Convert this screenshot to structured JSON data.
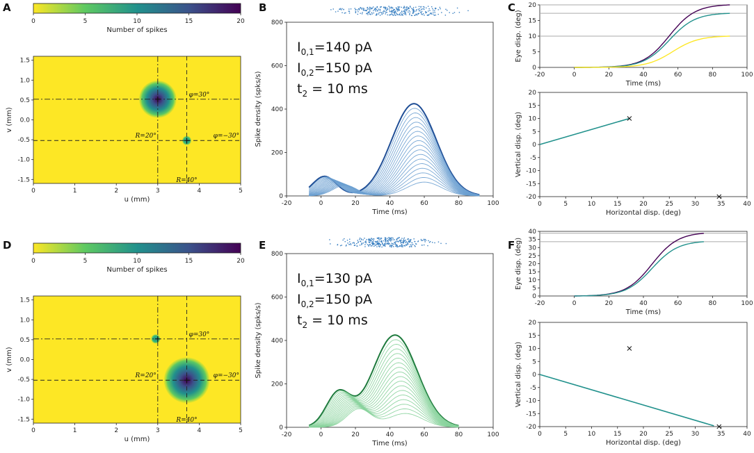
{
  "figure": {
    "panels": [
      {
        "label": "A"
      },
      {
        "label": "B"
      },
      {
        "label": "C"
      },
      {
        "label": "D"
      },
      {
        "label": "E"
      },
      {
        "label": "F"
      }
    ]
  },
  "colors": {
    "blue_dark": "#1f4e96",
    "blue_light": "#6a9fd0",
    "raster_blue": "#3a80c2",
    "green_dark": "#1d7a3c",
    "green_light": "#86d19a",
    "raster_green": "#3a80c2",
    "purple": "#440154",
    "teal": "#21918c",
    "yellow": "#fde725",
    "grey": "#aaaaaa",
    "map_bg": "#fde725"
  },
  "chart_data": [
    {
      "id": "A",
      "type": "heatmap",
      "colorbar": {
        "label": "Number of spikes",
        "ticks": [
          0,
          5,
          10,
          15,
          20
        ],
        "range": [
          0,
          20
        ],
        "colormap": "viridis_r"
      },
      "xlabel": "u (mm)",
      "ylabel": "v (mm)",
      "xlim": [
        0,
        5
      ],
      "ylim": [
        -1.6,
        1.6
      ],
      "xticks": [
        "0",
        "1",
        "2",
        "3",
        "4",
        "5"
      ],
      "yticks": [
        "-1.5",
        "-1.0",
        "-0.5",
        "0.0",
        "0.5",
        "1.0",
        "1.5"
      ],
      "blobs": [
        {
          "u": 3.0,
          "v": 0.52,
          "radius_mm": 0.45,
          "peak_spikes": 20
        },
        {
          "u": 3.7,
          "v": -0.52,
          "radius_mm": 0.11,
          "peak_spikes": 9
        }
      ],
      "lines": {
        "h_dashdot_v": 0.52,
        "h_dashed_v": -0.52,
        "v_dashdot_u": 3.0,
        "v_dashed_u": 3.7
      },
      "labels": {
        "phi_pos": "φ=30°",
        "phi_neg": "φ=−30°",
        "r_small": "R=20°",
        "r_large": "R=40°"
      }
    },
    {
      "id": "B",
      "type": "line",
      "xlabel": "Time (ms)",
      "ylabel": "Spike density (spks/s)",
      "xlim": [
        -20,
        100
      ],
      "ylim": [
        0,
        800
      ],
      "xticks": [
        "-20",
        "0",
        "20",
        "40",
        "60",
        "80",
        "100"
      ],
      "yticks": [
        "0",
        "200",
        "400",
        "600",
        "800"
      ],
      "annotation": {
        "line1": "I0,1=140 pA",
        "line2": "I0,2=150 pA",
        "line3": "t2 =  10 ms"
      },
      "population": {
        "early_peak": 82,
        "early_time": 2,
        "main_peak": 425,
        "main_time": 54,
        "onset": -7,
        "offset": 92,
        "n_traces": 18
      },
      "raster": {
        "t_start": 0,
        "t_end": 88,
        "center": 52
      }
    },
    {
      "id": "C_top",
      "type": "line",
      "xlabel": "Time (ms)",
      "ylabel": "Eye disp. (deg)",
      "xlim": [
        -20,
        100
      ],
      "ylim": [
        0,
        20
      ],
      "xticks": [
        "-20",
        "0",
        "20",
        "40",
        "60",
        "80",
        "100"
      ],
      "yticks": [
        "0",
        "5",
        "10",
        "15",
        "20"
      ],
      "targets": [
        20.0,
        17.3,
        10.0
      ],
      "series": [
        {
          "name": "amplitude",
          "final": 20.0,
          "mid_time": 55,
          "end_time": 90
        },
        {
          "name": "horizontal",
          "final": 17.3,
          "mid_time": 55,
          "end_time": 90
        },
        {
          "name": "vertical",
          "final": 10.0,
          "mid_time": 57,
          "end_time": 90
        }
      ]
    },
    {
      "id": "C_bottom",
      "type": "line",
      "xlabel": "Horizontal disp. (deg)",
      "ylabel": "Vertical disp. (deg)",
      "xlim": [
        0,
        40
      ],
      "ylim": [
        -20,
        20
      ],
      "xticks": [
        "0",
        "5",
        "10",
        "15",
        "20",
        "25",
        "30",
        "35",
        "40"
      ],
      "yticks": [
        "-20",
        "-15",
        "-10",
        "-5",
        "0",
        "5",
        "10",
        "15",
        "20"
      ],
      "trajectory": {
        "x": [
          0,
          17.3
        ],
        "y": [
          0,
          10.0
        ]
      },
      "targets": [
        {
          "x": 17.3,
          "y": 10.0
        },
        {
          "x": 34.6,
          "y": -20.0
        }
      ]
    },
    {
      "id": "D",
      "type": "heatmap",
      "colorbar": {
        "label": "Number of spikes",
        "ticks": [
          0,
          5,
          10,
          15,
          20
        ],
        "range": [
          0,
          20
        ],
        "colormap": "viridis_r"
      },
      "xlabel": "u (mm)",
      "ylabel": "v (mm)",
      "xlim": [
        0,
        5
      ],
      "ylim": [
        -1.6,
        1.6
      ],
      "xticks": [
        "0",
        "1",
        "2",
        "3",
        "4",
        "5"
      ],
      "yticks": [
        "-1.5",
        "-1.0",
        "-0.5",
        "0.0",
        "0.5",
        "1.0",
        "1.5"
      ],
      "blobs": [
        {
          "u": 3.7,
          "v": -0.52,
          "radius_mm": 0.55,
          "peak_spikes": 20
        },
        {
          "u": 2.95,
          "v": 0.52,
          "radius_mm": 0.11,
          "peak_spikes": 8
        }
      ],
      "lines": {
        "h_dashdot_v": 0.52,
        "h_dashed_v": -0.52,
        "v_dashdot_u": 3.0,
        "v_dashed_u": 3.7
      },
      "labels": {
        "phi_pos": "φ=30°",
        "phi_neg": "φ=−30°",
        "r_small": "R=20°",
        "r_large": "R=40°"
      }
    },
    {
      "id": "E",
      "type": "line",
      "xlabel": "Time (ms)",
      "ylabel": "Spike density (spks/s)",
      "xlim": [
        -20,
        100
      ],
      "ylim": [
        0,
        800
      ],
      "xticks": [
        "-20",
        "0",
        "20",
        "40",
        "60",
        "80",
        "100"
      ],
      "yticks": [
        "0",
        "200",
        "400",
        "600",
        "800"
      ],
      "annotation": {
        "line1": "I0,1=130 pA",
        "line2": "I0,2=150 pA",
        "line3": "t2 =  10 ms"
      },
      "population": {
        "early_peak": 140,
        "early_time": 10,
        "main_peak": 425,
        "main_time": 43,
        "onset": -7,
        "offset": 80,
        "n_traces": 18
      },
      "raster": {
        "t_start": 0,
        "t_end": 75,
        "center": 40
      }
    },
    {
      "id": "F_top",
      "type": "line",
      "xlabel": "Time (ms)",
      "ylabel": "Eye disp. (deg)",
      "xlim": [
        -20,
        100
      ],
      "ylim": [
        0,
        40
      ],
      "xticks": [
        "-20",
        "0",
        "20",
        "40",
        "60",
        "80",
        "100"
      ],
      "yticks": [
        "0",
        "5",
        "10",
        "15",
        "20",
        "25",
        "30",
        "35",
        "40"
      ],
      "targets": [
        38.8,
        33.6
      ],
      "series": [
        {
          "name": "amplitude",
          "final": 38.8,
          "mid_time": 45,
          "end_time": 75
        },
        {
          "name": "horizontal",
          "final": 33.6,
          "mid_time": 45,
          "end_time": 75
        }
      ]
    },
    {
      "id": "F_bottom",
      "type": "line",
      "xlabel": "Horizontal disp. (deg)",
      "ylabel": "Vertical disp. (deg)",
      "xlim": [
        0,
        40
      ],
      "ylim": [
        -20,
        20
      ],
      "xticks": [
        "0",
        "5",
        "10",
        "15",
        "20",
        "25",
        "30",
        "35",
        "40"
      ],
      "yticks": [
        "-20",
        "-15",
        "-10",
        "-5",
        "0",
        "5",
        "10",
        "15",
        "20"
      ],
      "trajectory": {
        "x": [
          0,
          33.6
        ],
        "y": [
          0,
          -19.7
        ]
      },
      "targets": [
        {
          "x": 17.3,
          "y": 10.0
        },
        {
          "x": 34.6,
          "y": -20.0
        }
      ]
    }
  ]
}
